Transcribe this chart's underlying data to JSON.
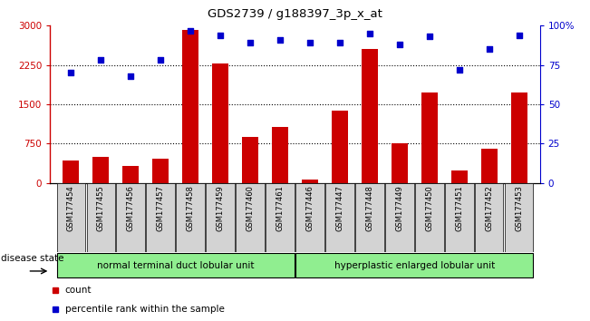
{
  "title": "GDS2739 / g188397_3p_x_at",
  "samples": [
    "GSM177454",
    "GSM177455",
    "GSM177456",
    "GSM177457",
    "GSM177458",
    "GSM177459",
    "GSM177460",
    "GSM177461",
    "GSM177446",
    "GSM177447",
    "GSM177448",
    "GSM177449",
    "GSM177450",
    "GSM177451",
    "GSM177452",
    "GSM177453"
  ],
  "counts": [
    430,
    490,
    330,
    470,
    2920,
    2280,
    870,
    1060,
    60,
    1380,
    2560,
    750,
    1720,
    230,
    660,
    1720
  ],
  "percentiles": [
    70,
    78,
    68,
    78,
    97,
    94,
    89,
    91,
    89,
    89,
    95,
    88,
    93,
    72,
    85,
    94
  ],
  "group1_label": "normal terminal duct lobular unit",
  "group1_count": 8,
  "group2_label": "hyperplastic enlarged lobular unit",
  "group2_count": 8,
  "disease_state_label": "disease state",
  "left_ylabel": "count",
  "right_ylabel": "percentile rank within the sample",
  "bar_color": "#cc0000",
  "dot_color": "#0000cc",
  "ylim_left": [
    0,
    3000
  ],
  "ylim_right": [
    0,
    100
  ],
  "yticks_left": [
    0,
    750,
    1500,
    2250,
    3000
  ],
  "yticks_right": [
    0,
    25,
    50,
    75,
    100
  ],
  "ytick_labels_left": [
    "0",
    "750",
    "1500",
    "2250",
    "3000"
  ],
  "ytick_labels_right": [
    "0",
    "25",
    "50",
    "75",
    "100%"
  ],
  "group1_color": "#90ee90",
  "group2_color": "#90ee90",
  "bg_color": "#ffffff",
  "tick_bg_color": "#d3d3d3"
}
